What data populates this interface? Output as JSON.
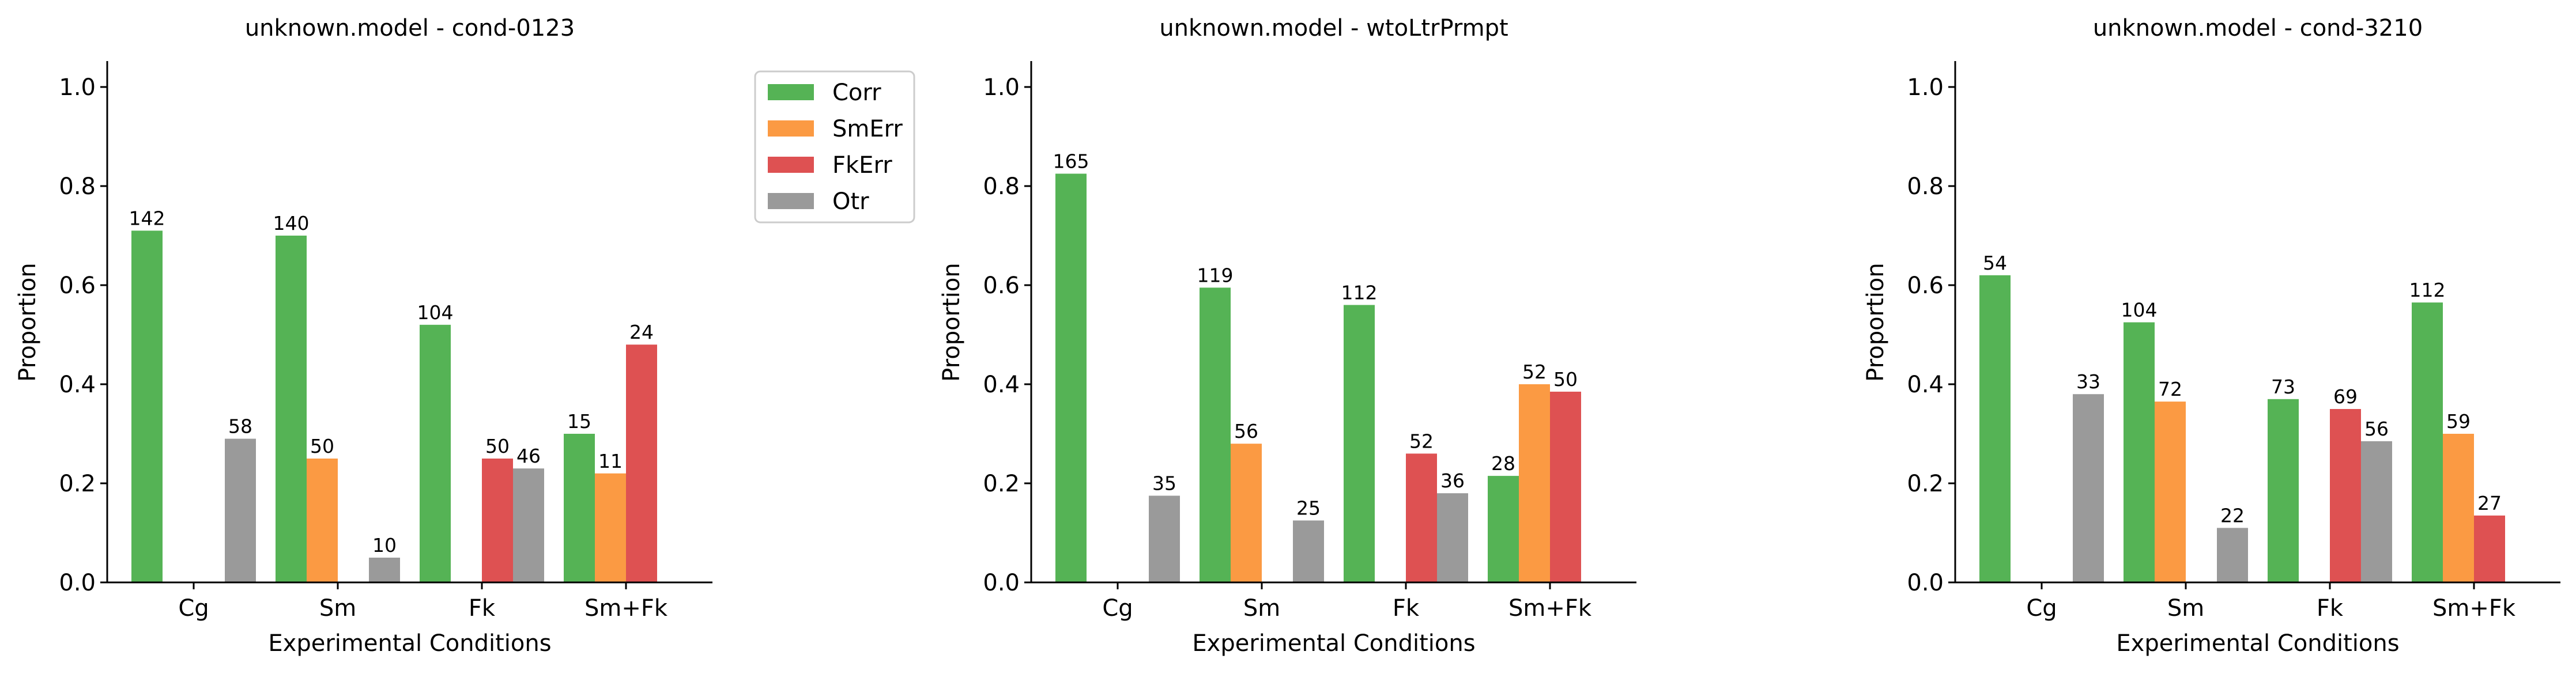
{
  "chart_data": [
    {
      "type": "bar",
      "title": "unknown.model - cond-0123",
      "xlabel": "Experimental Conditions",
      "ylabel": "Proportion",
      "ylim": [
        0,
        1.05
      ],
      "yticks": [
        "0.0",
        "0.2",
        "0.4",
        "0.6",
        "0.8",
        "1.0"
      ],
      "categories": [
        "Cg",
        "Sm",
        "Fk",
        "Sm+Fk"
      ],
      "series": [
        {
          "name": "Corr",
          "values": [
            0.71,
            0.7,
            0.52,
            0.3
          ],
          "labels": [
            "142",
            "140",
            "104",
            "15"
          ]
        },
        {
          "name": "SmErr",
          "values": [
            0,
            0.25,
            0,
            0.22
          ],
          "labels": [
            "",
            "50",
            "",
            "11"
          ]
        },
        {
          "name": "FkErr",
          "values": [
            0,
            0,
            0.25,
            0.48
          ],
          "labels": [
            "",
            "",
            "50",
            "24"
          ]
        },
        {
          "name": "Otr",
          "values": [
            0.29,
            0.05,
            0.23,
            0
          ],
          "labels": [
            "58",
            "10",
            "46",
            ""
          ]
        }
      ],
      "legend": "outside-right",
      "grid": false
    },
    {
      "type": "bar",
      "title": "unknown.model - wtoLtrPrmpt",
      "xlabel": "Experimental Conditions",
      "ylabel": "Proportion",
      "ylim": [
        0,
        1.05
      ],
      "yticks": [
        "0.0",
        "0.2",
        "0.4",
        "0.6",
        "0.8",
        "1.0"
      ],
      "categories": [
        "Cg",
        "Sm",
        "Fk",
        "Sm+Fk"
      ],
      "series": [
        {
          "name": "Corr",
          "values": [
            0.825,
            0.595,
            0.56,
            0.215
          ],
          "labels": [
            "165",
            "119",
            "112",
            "28"
          ]
        },
        {
          "name": "SmErr",
          "values": [
            0,
            0.28,
            0,
            0.4
          ],
          "labels": [
            "",
            "56",
            "",
            "52"
          ]
        },
        {
          "name": "FkErr",
          "values": [
            0,
            0,
            0.26,
            0.385
          ],
          "labels": [
            "",
            "",
            "52",
            "50"
          ]
        },
        {
          "name": "Otr",
          "values": [
            0.175,
            0.125,
            0.18,
            0
          ],
          "labels": [
            "35",
            "25",
            "36",
            ""
          ]
        }
      ],
      "grid": false
    },
    {
      "type": "bar",
      "title": "unknown.model - cond-3210",
      "xlabel": "Experimental Conditions",
      "ylabel": "Proportion",
      "ylim": [
        0,
        1.05
      ],
      "yticks": [
        "0.0",
        "0.2",
        "0.4",
        "0.6",
        "0.8",
        "1.0"
      ],
      "categories": [
        "Cg",
        "Sm",
        "Fk",
        "Sm+Fk"
      ],
      "series": [
        {
          "name": "Corr",
          "values": [
            0.62,
            0.525,
            0.37,
            0.565
          ],
          "labels": [
            "54",
            "104",
            "73",
            "112"
          ]
        },
        {
          "name": "SmErr",
          "values": [
            0,
            0.365,
            0,
            0.3
          ],
          "labels": [
            "",
            "72",
            "",
            "59"
          ]
        },
        {
          "name": "FkErr",
          "values": [
            0,
            0,
            0.35,
            0.135
          ],
          "labels": [
            "",
            "",
            "69",
            "27"
          ]
        },
        {
          "name": "Otr",
          "values": [
            0.38,
            0.11,
            0.285,
            0
          ],
          "labels": [
            "33",
            "22",
            "56",
            ""
          ]
        }
      ],
      "grid": false
    }
  ],
  "colors": {
    "Corr": "#55b355",
    "SmErr": "#fb9a43",
    "FkErr": "#de5152",
    "Otr": "#9a9a9a"
  }
}
